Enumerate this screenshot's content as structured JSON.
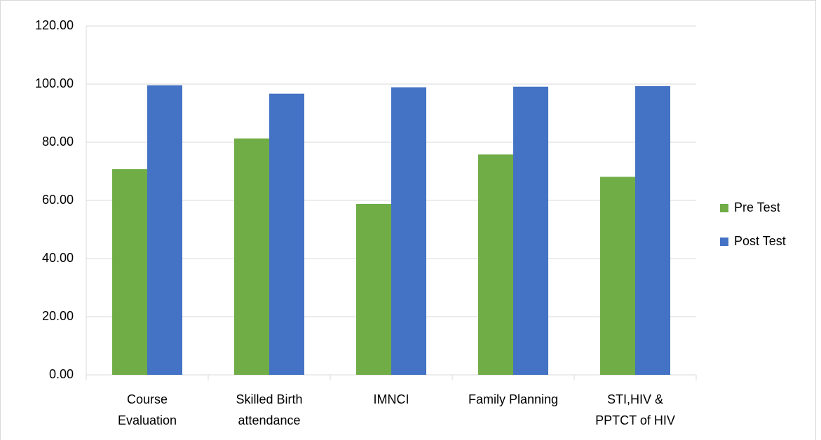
{
  "chart_data": {
    "type": "bar",
    "categories": [
      [
        "Course",
        "Evaluation"
      ],
      [
        "Skilled Birth",
        "attendance"
      ],
      [
        "IMNCI"
      ],
      [
        "Family Planning"
      ],
      [
        "STI,HIV &",
        "PPTCT of HIV"
      ]
    ],
    "series": [
      {
        "name": "Pre Test",
        "color": "#70ad47",
        "values": [
          70.8,
          81.3,
          58.8,
          75.8,
          68.1
        ]
      },
      {
        "name": "Post Test",
        "color": "#4472c4",
        "values": [
          99.6,
          96.7,
          98.9,
          99.1,
          99.3
        ]
      }
    ],
    "ylim": [
      0,
      120
    ],
    "yticks": [
      {
        "value": 0,
        "label": "0.00"
      },
      {
        "value": 20,
        "label": "20.00"
      },
      {
        "value": 40,
        "label": "40.00"
      },
      {
        "value": 60,
        "label": "60.00"
      },
      {
        "value": 80,
        "label": "80.00"
      },
      {
        "value": 100,
        "label": "100.00"
      },
      {
        "value": 120,
        "label": "120.00"
      }
    ],
    "grid": true,
    "legend": "right"
  }
}
